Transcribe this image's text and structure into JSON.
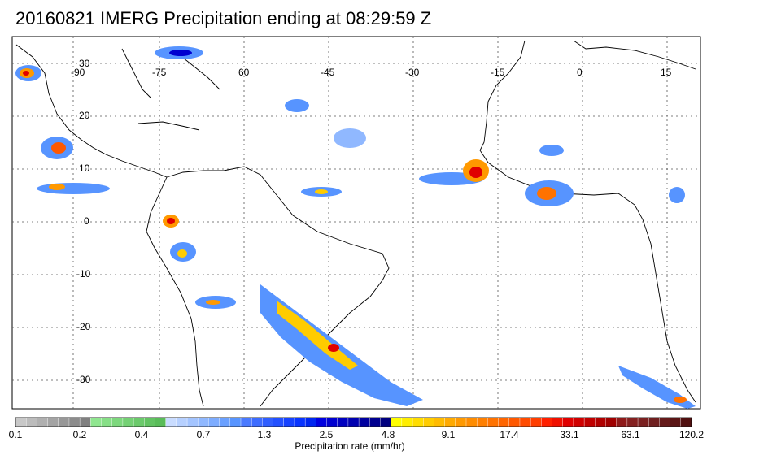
{
  "title": "20160821 IMERG Precipitation ending at 08:29:59 Z",
  "longitude_labels": [
    "-90",
    "-75",
    "60",
    "-45",
    "-30",
    "-15",
    "0",
    "15"
  ],
  "latitude_labels": [
    "30",
    "20",
    "10",
    "0",
    "-10",
    "-20",
    "-30"
  ],
  "colorbar": {
    "title": "Precipitation rate (mm/hr)",
    "tick_labels": [
      "0.1",
      "0.2",
      "0.4",
      "0.7",
      "1.3",
      "2.5",
      "4.8",
      "9.1",
      "17.4",
      "33.1",
      "63.1",
      "120.2"
    ],
    "colors": [
      "#c8c8c8",
      "#bcbcbc",
      "#b0b0b0",
      "#a4a4a4",
      "#989898",
      "#8c8c8c",
      "#808080",
      "#8fe68f",
      "#86df86",
      "#7dd87d",
      "#74d174",
      "#6bca6b",
      "#62c362",
      "#59bc59",
      "#c9dcff",
      "#b6d0ff",
      "#a3c4ff",
      "#90b8ff",
      "#7dacff",
      "#6aa0ff",
      "#5794ff",
      "#4a7aff",
      "#3d6cff",
      "#305eff",
      "#2350ff",
      "#1642ff",
      "#0934ff",
      "#0026f0",
      "#0000e0",
      "#0000d0",
      "#0000c0",
      "#0000b0",
      "#00009f",
      "#00008f",
      "#00007f",
      "#ffff00",
      "#ffee00",
      "#ffdd00",
      "#ffcc00",
      "#ffbb00",
      "#ffaa00",
      "#ff9900",
      "#ff8c00",
      "#ff7f00",
      "#ff7200",
      "#ff6500",
      "#ff5800",
      "#ff4b00",
      "#ff3e00",
      "#ff2000",
      "#f01000",
      "#e00000",
      "#d00000",
      "#c00000",
      "#b00000",
      "#a00000",
      "#8f1a1a",
      "#842020",
      "#7a2020",
      "#6f1f1f",
      "#651a1a",
      "#5a1515",
      "#501010"
    ]
  }
}
